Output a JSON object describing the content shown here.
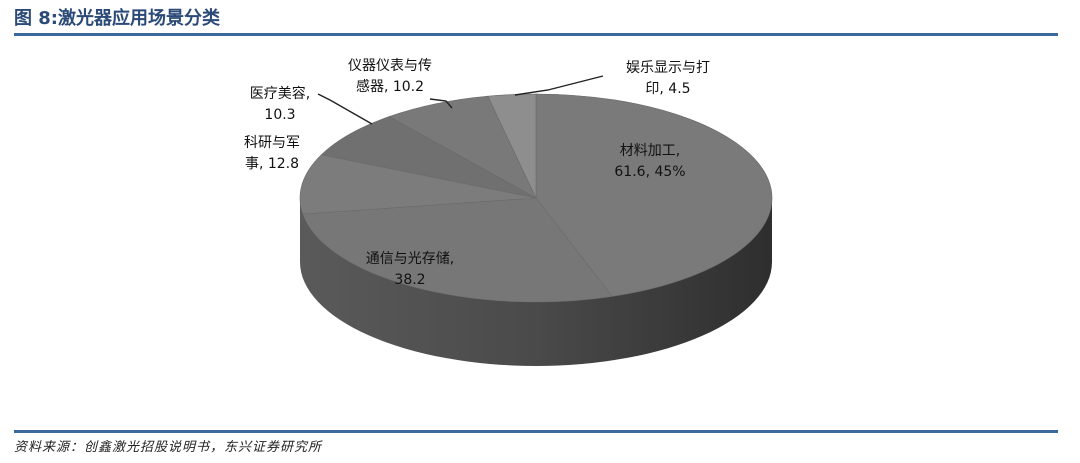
{
  "header": {
    "title": "图 8:激光器应用场景分类"
  },
  "footer": {
    "source": "资料来源：创鑫激光招股说明书，东兴证券研究所"
  },
  "chart_data": {
    "type": "pie",
    "style": "3d",
    "start": "12 o'clock, clockwise",
    "slices": [
      {
        "name": "材料加工",
        "value": 61.6,
        "label_lines": [
          "材料加工,",
          "61.6, 45%"
        ],
        "color": "#7a7a7a"
      },
      {
        "name": "通信与光存储",
        "value": 38.2,
        "label_lines": [
          "通信与光存储,",
          "38.2"
        ],
        "color": "#777777"
      },
      {
        "name": "科研与军事",
        "value": 12.8,
        "label_lines": [
          "科研与军",
          "事, 12.8"
        ],
        "color": "#7c7c7c"
      },
      {
        "name": "医疗美容",
        "value": 10.3,
        "label_lines": [
          "医疗美容,",
          "10.3"
        ],
        "color": "#707070"
      },
      {
        "name": "仪器仪表与传感器",
        "value": 10.2,
        "label_lines": [
          "仪器仪表与传",
          "感器, 10.2"
        ],
        "color": "#797979"
      },
      {
        "name": "娱乐显示与打印",
        "value": 4.5,
        "label_lines": [
          "娱乐显示与打",
          "印, 4.5"
        ],
        "color": "#8e8e8e"
      }
    ]
  }
}
